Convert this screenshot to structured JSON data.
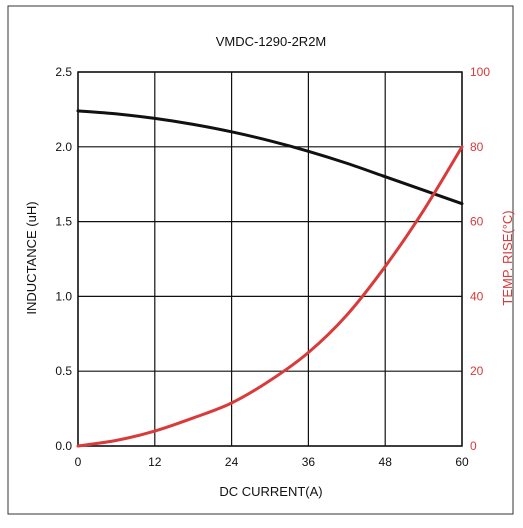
{
  "chart_data": {
    "type": "line",
    "title": "VMDC-1290-2R2M",
    "xlabel": "DC CURRENT(A)",
    "ylabel": "INDUCTANCE (uH)",
    "y2label": "TEMP. RISE(°C)",
    "xlim": [
      0,
      60
    ],
    "ylim": [
      0,
      2.5
    ],
    "y2lim": [
      0,
      100
    ],
    "x_ticks": [
      0,
      12,
      24,
      36,
      48,
      60
    ],
    "x_tick_labels": [
      "0",
      "12",
      "24",
      "36",
      "48",
      "60"
    ],
    "y_ticks": [
      0,
      0.5,
      1.0,
      1.5,
      2.0,
      2.5
    ],
    "y_tick_labels": [
      "0.0",
      "0.5",
      "1.0",
      "1.5",
      "2.0",
      "2.5"
    ],
    "y2_ticks": [
      0,
      20,
      40,
      60,
      80,
      100
    ],
    "y2_tick_labels": [
      "0",
      "20",
      "40",
      "60",
      "80",
      "100"
    ],
    "grid": true,
    "series": [
      {
        "axis": "left",
        "color": "#111111",
        "x": [
          0,
          6,
          12,
          18,
          24,
          30,
          36,
          42,
          48,
          54,
          60
        ],
        "y": [
          2.24,
          2.22,
          2.19,
          2.15,
          2.1,
          2.04,
          1.97,
          1.89,
          1.8,
          1.71,
          1.62
        ]
      },
      {
        "axis": "right",
        "color": "#d93a3a",
        "x": [
          0,
          6,
          12,
          18,
          24,
          30,
          36,
          42,
          48,
          54,
          60
        ],
        "y": [
          0,
          1.5,
          4,
          7.5,
          11.5,
          17.5,
          25,
          35,
          48,
          63,
          80
        ]
      }
    ]
  }
}
